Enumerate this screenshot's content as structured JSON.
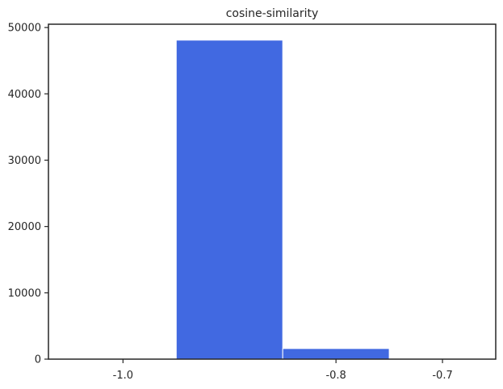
{
  "chart_data": {
    "type": "bar",
    "title": "cosine-similarity",
    "xlabel": "",
    "ylabel": "",
    "bins": [
      {
        "start": -1.0,
        "end": -0.95,
        "count": 0
      },
      {
        "start": -0.95,
        "end": -0.85,
        "count": 48100
      },
      {
        "start": -0.85,
        "end": -0.75,
        "count": 1600
      },
      {
        "start": -0.75,
        "end": -0.65,
        "count": 0
      }
    ],
    "xlim": [
      -1.07,
      -0.65
    ],
    "ylim": [
      0,
      50500
    ],
    "xticks": [
      -1.0,
      -0.8,
      -0.7
    ],
    "xtick_labels": [
      "-1.0",
      "-0.8",
      "-0.7"
    ],
    "yticks": [
      0,
      10000,
      20000,
      30000,
      40000,
      50000
    ],
    "ytick_labels": [
      "0",
      "10000",
      "20000",
      "30000",
      "40000",
      "50000"
    ],
    "grid": false,
    "color": "#4169e1"
  }
}
